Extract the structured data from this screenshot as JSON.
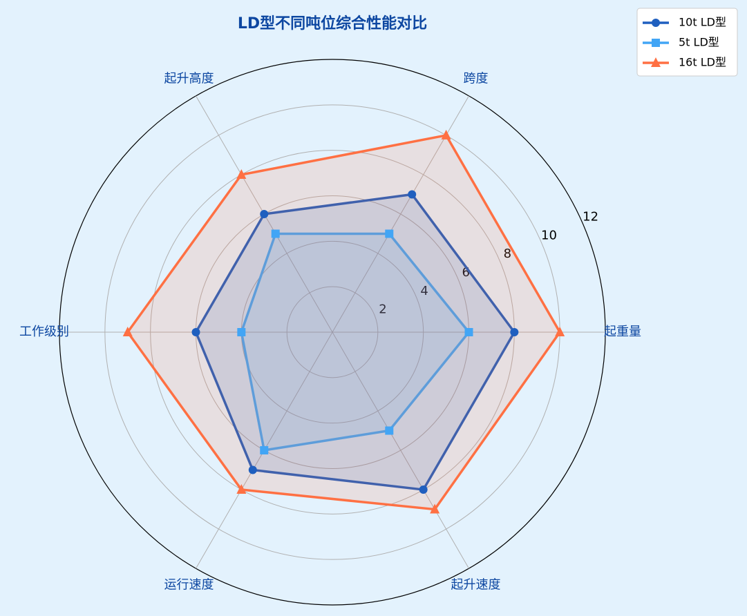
{
  "chart_data": {
    "type": "radar",
    "title": "LD型不同吨位综合性能对比",
    "categories": [
      "起重量",
      "跨度",
      "起升高度",
      "工作级别",
      "运行速度",
      "起升速度"
    ],
    "series": [
      {
        "name": "10t LD型",
        "color": "#1f5fbf",
        "marker": "circle",
        "values": [
          8,
          7,
          6,
          6,
          7,
          8
        ]
      },
      {
        "name": "5t LD型",
        "color": "#42a5f5",
        "marker": "square",
        "values": [
          6,
          5,
          5,
          4,
          6,
          5
        ]
      },
      {
        "name": "16t LD型",
        "color": "#ff7043",
        "marker": "triangle",
        "values": [
          10,
          10,
          8,
          9,
          8,
          9
        ]
      }
    ],
    "rlim": [
      0,
      12
    ],
    "rticks": [
      2,
      4,
      6,
      8,
      10,
      12
    ],
    "grid": true,
    "legend": "upper right"
  }
}
